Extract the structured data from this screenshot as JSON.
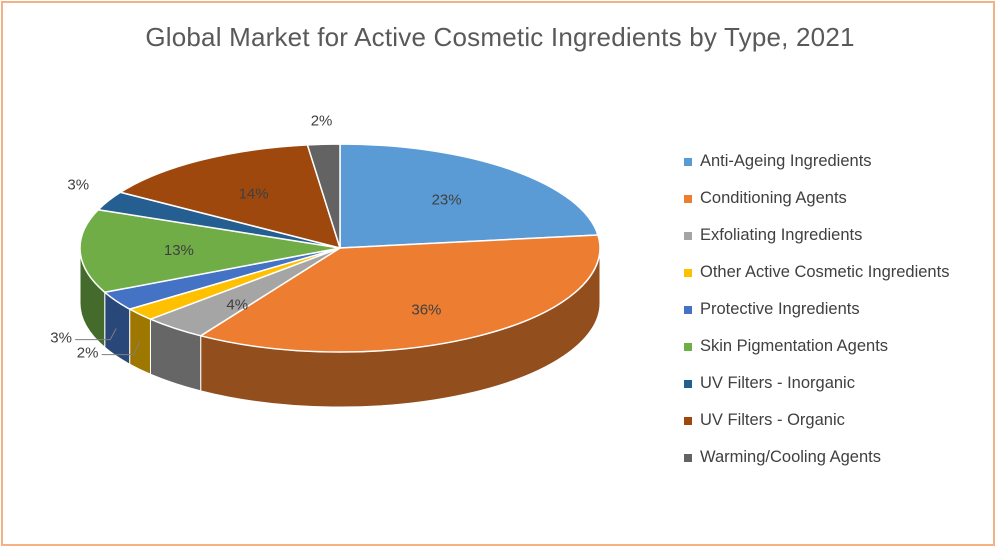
{
  "chart_data": {
    "type": "pie",
    "title": "Global Market for Active Cosmetic Ingredients by Type, 2021",
    "categories": [
      "Anti-Ageing Ingredients",
      "Conditioning Agents",
      "Exfoliating Ingredients",
      "Other Active Cosmetic Ingredients",
      "Protective Ingredients",
      "Skin Pigmentation Agents",
      "UV Filters - Inorganic",
      "UV Filters - Organic",
      "Warming/Cooling Agents"
    ],
    "values": [
      23,
      36,
      4,
      2,
      3,
      13,
      3,
      14,
      2
    ],
    "value_labels": [
      "23%",
      "36%",
      "4%",
      "2%",
      "3%",
      "13%",
      "3%",
      "14%",
      "2%"
    ],
    "colors": [
      "#5B9BD5",
      "#ED7D31",
      "#A5A5A5",
      "#FFC000",
      "#4472C4",
      "#70AD47",
      "#255E91",
      "#9E480E",
      "#636363"
    ],
    "legend_position": "right",
    "style": "3d"
  },
  "frame": {
    "border_color": "#F4B183"
  }
}
